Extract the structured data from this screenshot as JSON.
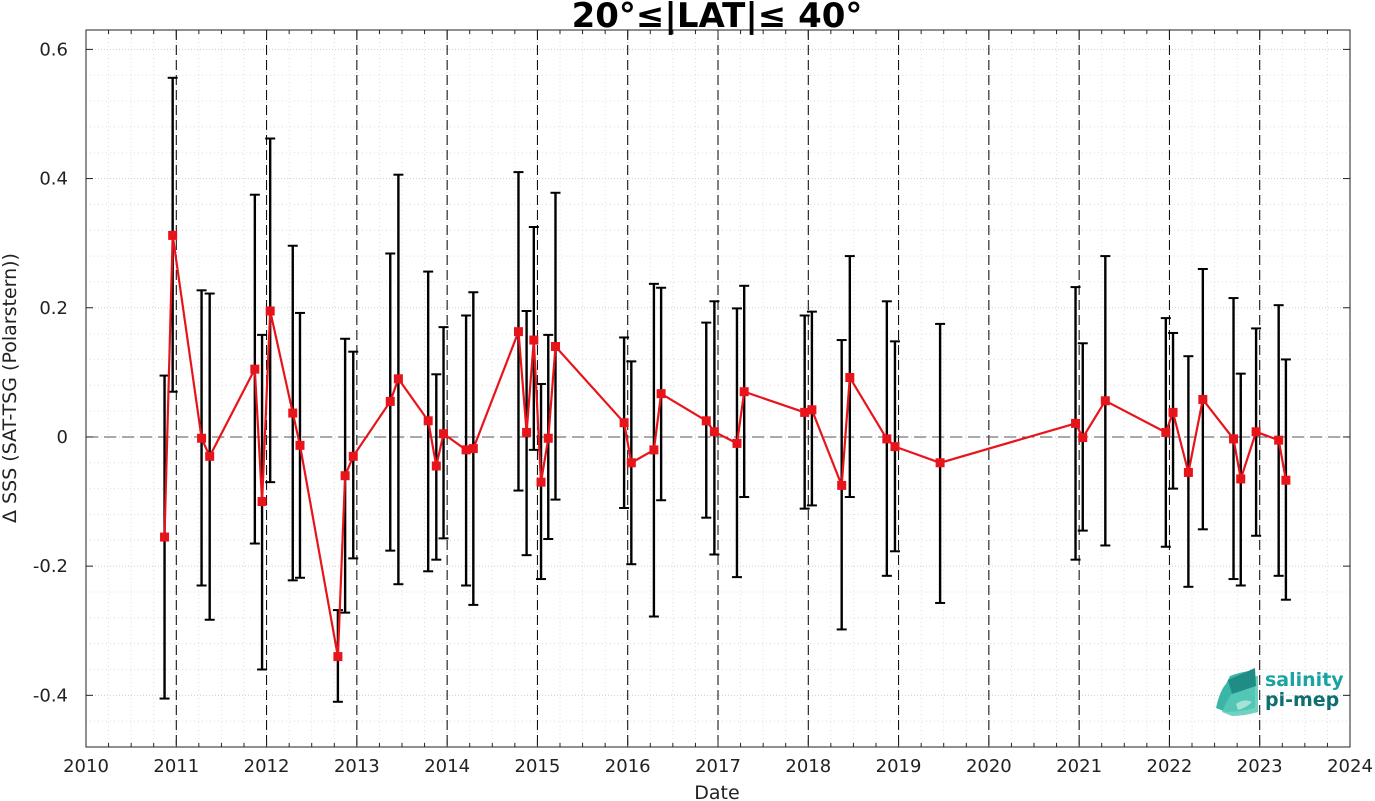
{
  "chart_data": {
    "type": "line",
    "title": "20°≤|LAT|≤ 40°",
    "xlabel": "Date",
    "ylabel": "Δ SSS (SAT-TSG (Polarstern))",
    "xlim": [
      2010,
      2024
    ],
    "ylim": [
      -0.48,
      0.63
    ],
    "x_ticks": [
      2010,
      2011,
      2012,
      2013,
      2014,
      2015,
      2016,
      2017,
      2018,
      2019,
      2020,
      2021,
      2022,
      2023,
      2024
    ],
    "x_tick_labels": [
      "2010",
      "2011",
      "2012",
      "2013",
      "2014",
      "2015",
      "2016",
      "2017",
      "2018",
      "2019",
      "2020",
      "2021",
      "2022",
      "2023",
      "2024"
    ],
    "y_ticks": [
      -0.4,
      -0.2,
      0,
      0.2,
      0.4,
      0.6
    ],
    "y_tick_labels": [
      "-0.4",
      "-0.2",
      "0",
      "0.2",
      "0.4",
      "0.6"
    ],
    "grid": "minor dotted",
    "reference_line": 0,
    "year_boundaries": [
      2011,
      2012,
      2013,
      2014,
      2015,
      2016,
      2017,
      2018,
      2019,
      2020,
      2021,
      2022,
      2023
    ],
    "colors": {
      "series": "#e8141b",
      "errorbar": "#000000",
      "zero_line": "#555555",
      "boundary": "#000000"
    },
    "series": [
      {
        "x": [
          2010.87,
          2010.96,
          2011.28,
          2011.37,
          2011.87,
          2011.95,
          2012.04,
          2012.29,
          2012.37,
          2012.79,
          2012.87,
          2012.96,
          2013.37,
          2013.46,
          2013.79,
          2013.88,
          2013.96,
          2014.21,
          2014.29,
          2014.79,
          2014.88,
          2014.96,
          2015.04,
          2015.12,
          2015.2,
          2015.96,
          2016.04,
          2016.29,
          2016.37,
          2016.87,
          2016.96,
          2017.21,
          2017.29,
          2017.96,
          2018.04,
          2018.37,
          2018.46,
          2018.87,
          2018.96,
          2019.46,
          2020.96,
          2021.04,
          2021.29,
          2021.96,
          2022.04,
          2022.21,
          2022.37,
          2022.71,
          2022.79,
          2022.96,
          2023.21,
          2023.29
        ],
        "y": [
          -0.155,
          0.312,
          -0.002,
          -0.03,
          0.105,
          -0.1,
          0.195,
          0.037,
          -0.013,
          -0.34,
          -0.06,
          -0.03,
          0.055,
          0.09,
          0.025,
          -0.045,
          0.005,
          -0.02,
          -0.018,
          0.163,
          0.007,
          0.15,
          -0.07,
          -0.002,
          0.14,
          0.022,
          -0.04,
          -0.02,
          0.067,
          0.025,
          0.008,
          -0.01,
          0.07,
          0.038,
          0.042,
          -0.075,
          0.092,
          -0.003,
          -0.015,
          -0.04,
          0.021,
          -0.001,
          0.056,
          0.007,
          0.038,
          -0.055,
          0.058,
          -0.003,
          -0.065,
          0.008,
          -0.005,
          -0.067
        ],
        "y_lower": [
          -0.405,
          0.07,
          -0.23,
          -0.283,
          -0.165,
          -0.36,
          -0.07,
          -0.222,
          -0.218,
          -0.41,
          -0.272,
          -0.188,
          -0.176,
          -0.228,
          -0.208,
          -0.19,
          -0.157,
          -0.23,
          -0.26,
          -0.083,
          -0.183,
          -0.02,
          -0.22,
          -0.158,
          -0.097,
          -0.11,
          -0.197,
          -0.278,
          -0.098,
          -0.125,
          -0.182,
          -0.217,
          -0.093,
          -0.111,
          -0.106,
          -0.298,
          -0.093,
          -0.215,
          -0.177,
          -0.257,
          -0.19,
          -0.145,
          -0.168,
          -0.17,
          -0.08,
          -0.232,
          -0.143,
          -0.22,
          -0.23,
          -0.153,
          -0.215,
          -0.252
        ],
        "y_upper": [
          0.095,
          0.556,
          0.227,
          0.222,
          0.375,
          0.158,
          0.462,
          0.296,
          0.192,
          -0.268,
          0.152,
          0.132,
          0.284,
          0.406,
          0.256,
          0.097,
          0.17,
          0.188,
          0.224,
          0.41,
          0.195,
          0.325,
          0.082,
          0.158,
          0.378,
          0.154,
          0.117,
          0.237,
          0.231,
          0.177,
          0.21,
          0.199,
          0.234,
          0.188,
          0.194,
          0.15,
          0.28,
          0.21,
          0.148,
          0.175,
          0.232,
          0.145,
          0.28,
          0.184,
          0.161,
          0.125,
          0.26,
          0.215,
          0.098,
          0.168,
          0.204,
          0.12
        ]
      }
    ]
  },
  "logo": {
    "line1": "salinity",
    "line2": "pi-mep",
    "color1": "#1aa3a0",
    "color2": "#0e6e72"
  }
}
